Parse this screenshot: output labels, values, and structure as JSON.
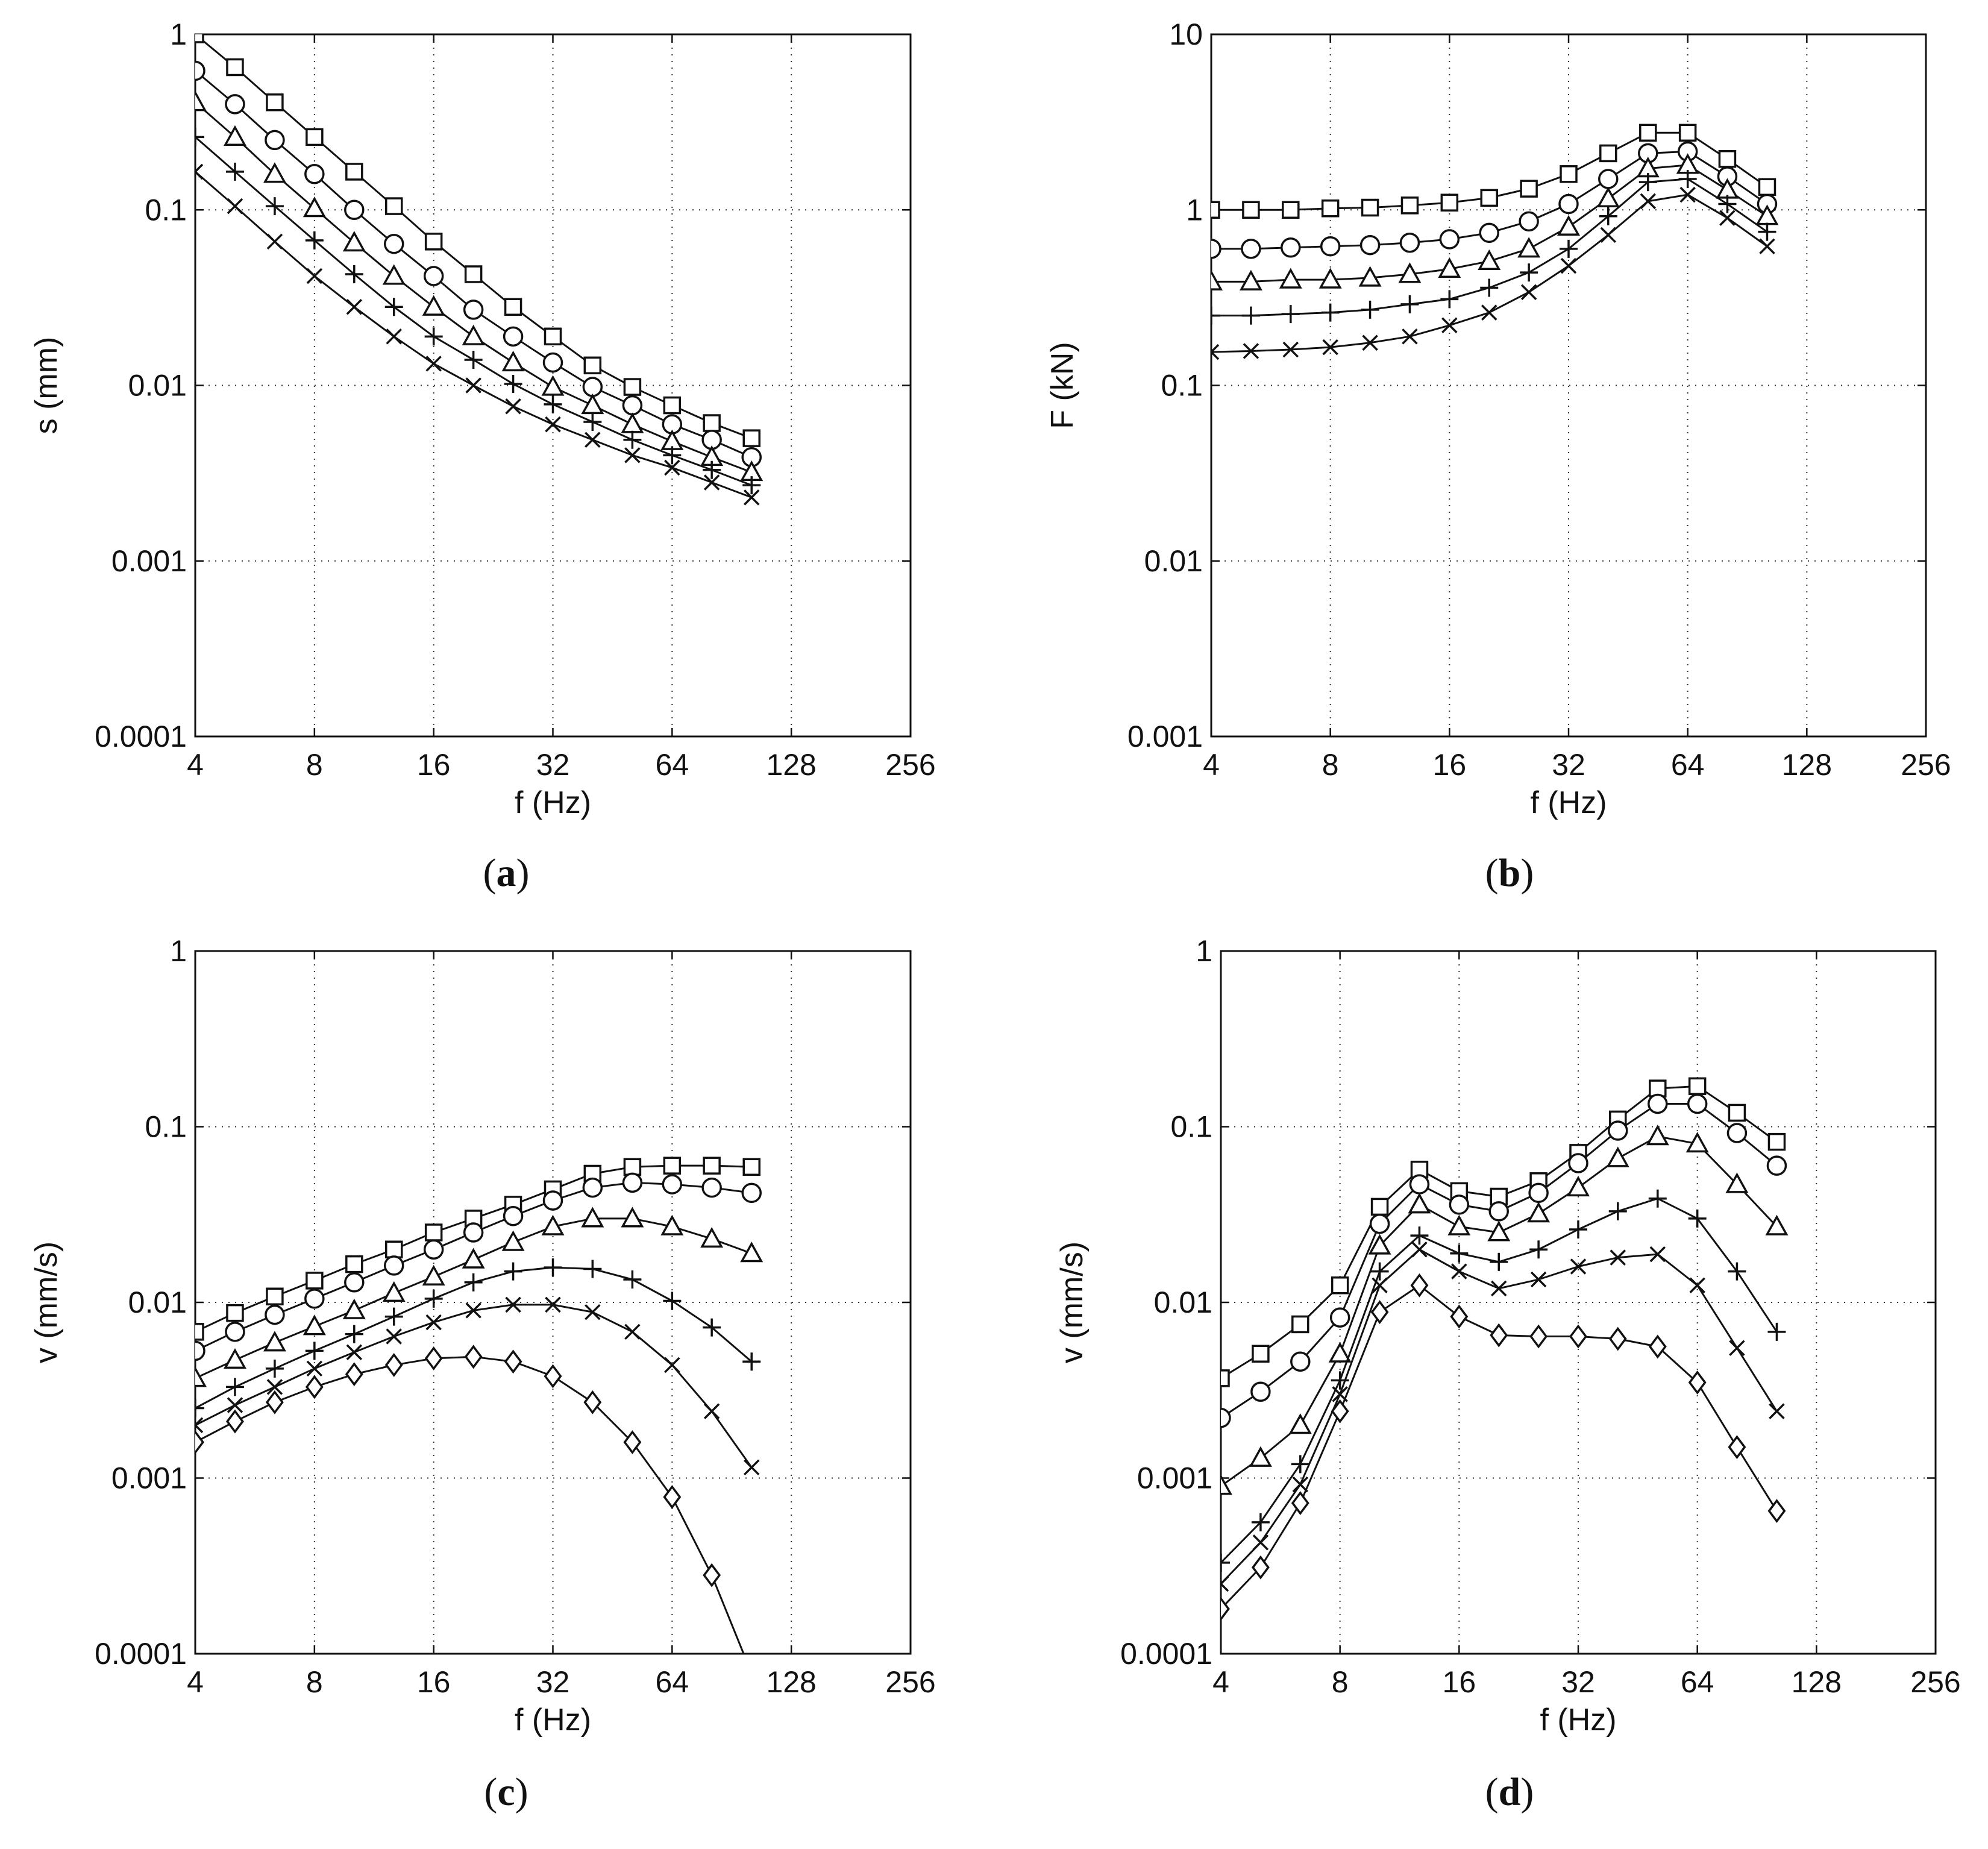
{
  "chart_data": [
    {
      "type": "line",
      "panel": "(a)",
      "xscale": "log2",
      "yscale": "log10",
      "xlim": [
        4,
        256
      ],
      "ylim": [
        0.0001,
        1
      ],
      "xticks": [
        4,
        8,
        16,
        32,
        64,
        128,
        256
      ],
      "xtick_labels": [
        "4",
        "8",
        "16",
        "32",
        "64",
        "128",
        "256"
      ],
      "yticks": [
        0.0001,
        0.001,
        0.01,
        0.1,
        1
      ],
      "ytick_labels": [
        "0.0001",
        "0.001",
        "0.01",
        "0.1",
        "1"
      ],
      "xlabel": "f (Hz)",
      "ylabel": "s (mm)",
      "grid": true,
      "x": [
        4,
        5.04,
        6.35,
        8,
        10.08,
        12.7,
        16,
        20.16,
        25.4,
        32,
        40.3,
        50.8,
        64,
        80.6,
        101.6
      ],
      "series": [
        {
          "name": "square",
          "marker": "square",
          "line_x_start": 4,
          "values": [
            1.0,
            0.65,
            0.41,
            0.26,
            0.165,
            0.105,
            0.066,
            0.043,
            0.028,
            0.019,
            0.013,
            0.0098,
            0.0077,
            0.0061,
            0.005
          ]
        },
        {
          "name": "circle",
          "marker": "circle",
          "values": [
            0.62,
            0.4,
            0.25,
            0.16,
            0.1,
            0.064,
            0.042,
            0.027,
            0.019,
            0.0135,
            0.0098,
            0.0077,
            0.006,
            0.0049,
            0.0039
          ]
        },
        {
          "name": "triangle",
          "marker": "triangle",
          "values": [
            0.41,
            0.26,
            0.16,
            0.102,
            0.065,
            0.042,
            0.028,
            0.019,
            0.0135,
            0.0098,
            0.0077,
            0.006,
            0.0048,
            0.0039,
            0.0032
          ]
        },
        {
          "name": "plus",
          "marker": "plus",
          "values": [
            0.26,
            0.165,
            0.105,
            0.067,
            0.043,
            0.028,
            0.019,
            0.014,
            0.0102,
            0.0078,
            0.0062,
            0.0049,
            0.004,
            0.0033,
            0.0027
          ]
        },
        {
          "name": "cross",
          "marker": "cross",
          "values": [
            0.165,
            0.105,
            0.066,
            0.042,
            0.028,
            0.019,
            0.0133,
            0.01,
            0.0076,
            0.006,
            0.0049,
            0.004,
            0.0034,
            0.0028,
            0.0023
          ]
        }
      ]
    },
    {
      "type": "line",
      "panel": "(b)",
      "xscale": "log2",
      "yscale": "log10",
      "xlim": [
        4,
        256
      ],
      "ylim": [
        0.001,
        10
      ],
      "xticks": [
        4,
        8,
        16,
        32,
        64,
        128,
        256
      ],
      "xtick_labels": [
        "4",
        "8",
        "16",
        "32",
        "64",
        "128",
        "256"
      ],
      "yticks": [
        0.001,
        0.01,
        0.1,
        1,
        10
      ],
      "ytick_labels": [
        "0.001",
        "0.01",
        "0.1",
        "1",
        "10"
      ],
      "xlabel": "f (Hz)",
      "ylabel": "F (kN)",
      "grid": true,
      "x": [
        4,
        5.04,
        6.35,
        8,
        10.08,
        12.7,
        16,
        20.16,
        25.4,
        32,
        40.3,
        50.8,
        64,
        80.6,
        101.6
      ],
      "series": [
        {
          "name": "square",
          "marker": "square",
          "values": [
            1.0,
            1.0,
            1.0,
            1.02,
            1.03,
            1.06,
            1.1,
            1.17,
            1.32,
            1.6,
            2.1,
            2.75,
            2.75,
            1.95,
            1.35
          ]
        },
        {
          "name": "circle",
          "marker": "circle",
          "values": [
            0.6,
            0.6,
            0.61,
            0.62,
            0.63,
            0.65,
            0.68,
            0.74,
            0.86,
            1.08,
            1.5,
            2.1,
            2.15,
            1.55,
            1.08
          ]
        },
        {
          "name": "triangle",
          "marker": "triangle",
          "values": [
            0.39,
            0.39,
            0.4,
            0.4,
            0.41,
            0.43,
            0.46,
            0.51,
            0.6,
            0.8,
            1.16,
            1.72,
            1.8,
            1.3,
            0.92
          ]
        },
        {
          "name": "plus",
          "marker": "plus",
          "values": [
            0.25,
            0.25,
            0.255,
            0.26,
            0.27,
            0.29,
            0.31,
            0.36,
            0.44,
            0.6,
            0.92,
            1.44,
            1.5,
            1.08,
            0.75
          ]
        },
        {
          "name": "cross",
          "marker": "cross",
          "values": [
            0.155,
            0.157,
            0.16,
            0.165,
            0.175,
            0.19,
            0.22,
            0.26,
            0.34,
            0.48,
            0.72,
            1.12,
            1.22,
            0.9,
            0.62
          ]
        }
      ]
    },
    {
      "type": "line",
      "panel": "(c)",
      "xscale": "log2",
      "yscale": "log10",
      "xlim": [
        4,
        256
      ],
      "ylim": [
        0.0001,
        1
      ],
      "xticks": [
        4,
        8,
        16,
        32,
        64,
        128,
        256
      ],
      "xtick_labels": [
        "4",
        "8",
        "16",
        "32",
        "64",
        "128",
        "256"
      ],
      "yticks": [
        0.0001,
        0.001,
        0.01,
        0.1,
        1
      ],
      "ytick_labels": [
        "0.0001",
        "0.001",
        "0.01",
        "0.1",
        "1"
      ],
      "xlabel": "f (Hz)",
      "ylabel": "v (mm/s)",
      "grid": true,
      "x": [
        4,
        5.04,
        6.35,
        8,
        10.08,
        12.7,
        16,
        20.16,
        25.4,
        32,
        40.3,
        50.8,
        64,
        80.6,
        101.6
      ],
      "series": [
        {
          "name": "square",
          "marker": "square",
          "values": [
            0.0068,
            0.0087,
            0.0108,
            0.0133,
            0.0165,
            0.02,
            0.025,
            0.03,
            0.036,
            0.044,
            0.054,
            0.059,
            0.06,
            0.06,
            0.059
          ]
        },
        {
          "name": "circle",
          "marker": "circle",
          "values": [
            0.0053,
            0.0068,
            0.0085,
            0.0105,
            0.013,
            0.0162,
            0.02,
            0.025,
            0.031,
            0.038,
            0.045,
            0.048,
            0.047,
            0.045,
            0.042
          ]
        },
        {
          "name": "triangle",
          "marker": "triangle",
          "values": [
            0.0037,
            0.0047,
            0.0059,
            0.0073,
            0.009,
            0.0113,
            0.014,
            0.0175,
            0.022,
            0.027,
            0.03,
            0.03,
            0.027,
            0.023,
            0.019
          ]
        },
        {
          "name": "plus",
          "marker": "plus",
          "values": [
            0.0025,
            0.0033,
            0.0042,
            0.0053,
            0.0066,
            0.0083,
            0.0105,
            0.013,
            0.015,
            0.0158,
            0.0155,
            0.0135,
            0.0102,
            0.0072,
            0.0046
          ]
        },
        {
          "name": "cross",
          "marker": "cross",
          "values": [
            0.002,
            0.0026,
            0.0033,
            0.0042,
            0.0052,
            0.0064,
            0.0077,
            0.009,
            0.0097,
            0.0097,
            0.0088,
            0.0068,
            0.0044,
            0.0024,
            0.00115
          ]
        },
        {
          "name": "diamond",
          "marker": "diamond",
          "line_x_end": 97,
          "values": [
            0.0016,
            0.0021,
            0.0027,
            0.0033,
            0.0039,
            0.0044,
            0.0048,
            0.0049,
            0.0046,
            0.0038,
            0.0027,
            0.0016,
            0.00078,
            0.00028,
            0.0001
          ]
        }
      ]
    },
    {
      "type": "line",
      "panel": "(d)",
      "xscale": "log2",
      "yscale": "log10",
      "xlim": [
        4,
        256
      ],
      "ylim": [
        0.0001,
        1
      ],
      "xticks": [
        4,
        8,
        16,
        32,
        64,
        128,
        256
      ],
      "xtick_labels": [
        "4",
        "8",
        "16",
        "32",
        "64",
        "128",
        "256"
      ],
      "yticks": [
        0.0001,
        0.001,
        0.01,
        0.1,
        1
      ],
      "ytick_labels": [
        "0.0001",
        "0.001",
        "0.01",
        "0.1",
        "1"
      ],
      "xlabel": "f (Hz)",
      "ylabel": "v (mm/s)",
      "grid": true,
      "x": [
        4,
        5.04,
        6.35,
        8,
        10.08,
        12.7,
        16,
        20.16,
        25.4,
        32,
        40.3,
        50.8,
        64,
        80.6,
        101.6
      ],
      "series": [
        {
          "name": "square",
          "marker": "square",
          "values": [
            0.0037,
            0.0051,
            0.0075,
            0.0125,
            0.035,
            0.057,
            0.043,
            0.04,
            0.049,
            0.071,
            0.11,
            0.165,
            0.17,
            0.12,
            0.082
          ]
        },
        {
          "name": "circle",
          "marker": "circle",
          "values": [
            0.0022,
            0.0031,
            0.0046,
            0.0082,
            0.028,
            0.047,
            0.036,
            0.033,
            0.042,
            0.062,
            0.095,
            0.135,
            0.135,
            0.092,
            0.06
          ]
        },
        {
          "name": "triangle",
          "marker": "triangle",
          "values": [
            0.0009,
            0.0013,
            0.002,
            0.0051,
            0.021,
            0.036,
            0.027,
            0.025,
            0.032,
            0.045,
            0.066,
            0.088,
            0.08,
            0.047,
            0.027
          ]
        },
        {
          "name": "plus",
          "marker": "plus",
          "values": [
            0.00033,
            0.00056,
            0.0012,
            0.0036,
            0.015,
            0.024,
            0.019,
            0.017,
            0.02,
            0.026,
            0.033,
            0.039,
            0.03,
            0.015,
            0.0068
          ]
        },
        {
          "name": "cross",
          "marker": "cross",
          "values": [
            0.00025,
            0.00043,
            0.00092,
            0.003,
            0.0125,
            0.02,
            0.015,
            0.012,
            0.0135,
            0.016,
            0.018,
            0.0188,
            0.0125,
            0.0055,
            0.0024
          ]
        },
        {
          "name": "diamond",
          "marker": "diamond",
          "values": [
            0.00018,
            0.00031,
            0.00072,
            0.0024,
            0.0088,
            0.0125,
            0.0083,
            0.0065,
            0.0064,
            0.0064,
            0.0062,
            0.0056,
            0.0035,
            0.0015,
            0.00065
          ]
        }
      ]
    }
  ]
}
